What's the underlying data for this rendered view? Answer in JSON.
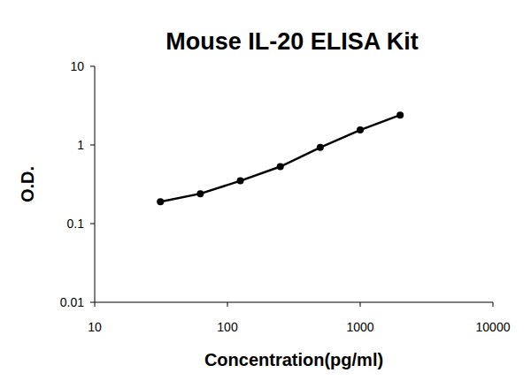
{
  "chart_data": {
    "type": "line",
    "title": "Mouse IL-20 ELISA Kit",
    "x_label": "Concentration(pg/ml)",
    "y_label": "O.D.",
    "x": [
      31.25,
      62.5,
      125,
      250,
      500,
      1000,
      2000
    ],
    "values": [
      0.19,
      0.24,
      0.35,
      0.53,
      0.93,
      1.55,
      2.4
    ],
    "color": "#000000",
    "marker": "circle",
    "line_style": "solid",
    "log": true,
    "grid": false,
    "xlim": [
      10,
      10000
    ],
    "xticks": [
      10,
      100,
      1000,
      10000
    ],
    "ylim": [
      0.01,
      10
    ],
    "yticks": [
      0.01,
      0.1,
      1,
      10
    ]
  }
}
